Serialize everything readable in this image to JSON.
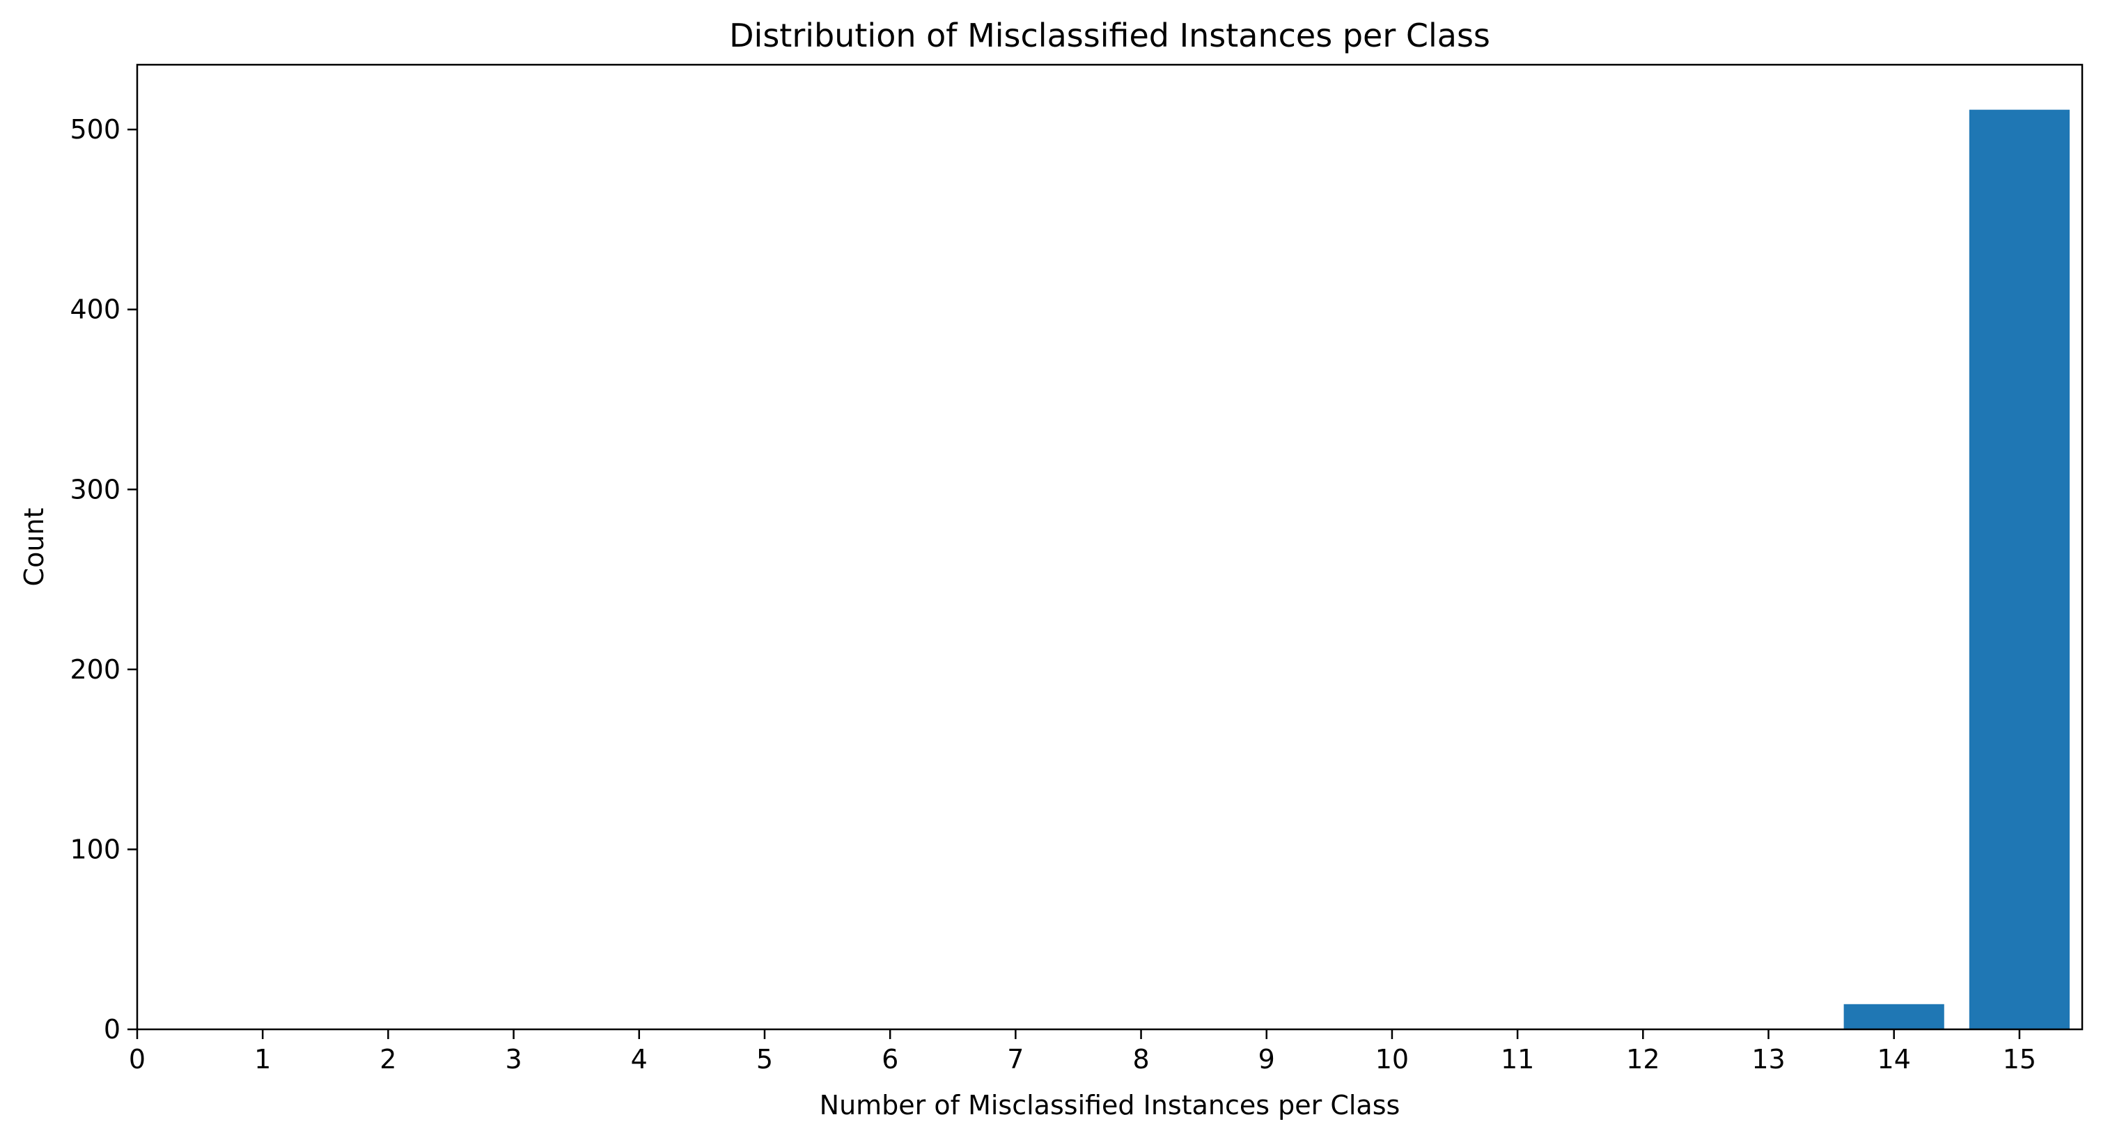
{
  "chart_data": {
    "type": "bar",
    "title": "Distribution of Misclassified Instances per Class",
    "xlabel": "Number of Misclassified Instances per Class",
    "ylabel": "Count",
    "x": [
      14,
      15
    ],
    "values": [
      14,
      511
    ],
    "xlim": [
      0,
      15.5
    ],
    "ylim": [
      0,
      536
    ],
    "xticks": [
      0,
      1,
      2,
      3,
      4,
      5,
      6,
      7,
      8,
      9,
      10,
      11,
      12,
      13,
      14,
      15
    ],
    "xtick_labels": [
      "0",
      "1",
      "2",
      "3",
      "4",
      "5",
      "6",
      "7",
      "8",
      "9",
      "10",
      "11",
      "12",
      "13",
      "14",
      "15"
    ],
    "yticks": [
      0,
      100,
      200,
      300,
      400,
      500
    ],
    "ytick_labels": [
      "0",
      "100",
      "200",
      "300",
      "400",
      "500"
    ],
    "bar_width": 0.8,
    "bar_color": "#1f77b4",
    "grid": false,
    "legend": "none"
  }
}
